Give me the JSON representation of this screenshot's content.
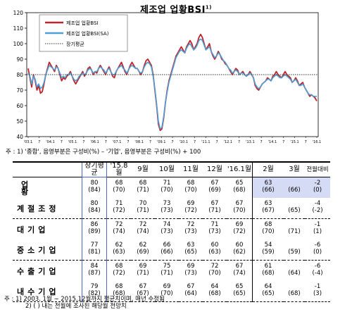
{
  "title": "제조업 업황BSI",
  "title_sup": "1)",
  "chart_data": {
    "type": "line",
    "ylim": [
      40,
      120
    ],
    "yticks": [
      40,
      50,
      60,
      70,
      80,
      90,
      100,
      110,
      120
    ],
    "xlabels": [
      "'03.1",
      "7",
      "'04.1",
      "7",
      "'05.1",
      "7",
      "'06.1",
      "7",
      "'07.1",
      "7",
      "'08.1",
      "7",
      "'09.1",
      "7",
      "'10.1",
      "7",
      "'11.1",
      "7",
      "'12.1",
      "7",
      "'13.1",
      "7",
      "'14.1",
      "7",
      "'15.1",
      "7",
      "'16.1"
    ],
    "series": [
      {
        "name": "제조업 업황BSI",
        "color": "#c0232a",
        "values": [
          84,
          78,
          72,
          80,
          76,
          70,
          73,
          68,
          69,
          74,
          80,
          84,
          88,
          86,
          84,
          82,
          86,
          84,
          80,
          76,
          78,
          77,
          79,
          80,
          82,
          79,
          76,
          74,
          76,
          78,
          80,
          82,
          79,
          81,
          84,
          85,
          83,
          80,
          82,
          81,
          84,
          86,
          84,
          82,
          80,
          83,
          85,
          82,
          79,
          78,
          82,
          84,
          86,
          88,
          85,
          82,
          80,
          83,
          86,
          88,
          86,
          84,
          84,
          82,
          80,
          82,
          86,
          89,
          90,
          88,
          86,
          80,
          70,
          60,
          48,
          44,
          45,
          52,
          62,
          70,
          76,
          80,
          84,
          88,
          92,
          94,
          96,
          98,
          96,
          94,
          98,
          100,
          102,
          100,
          96,
          98,
          100,
          104,
          106,
          104,
          100,
          96,
          98,
          100,
          95,
          92,
          90,
          92,
          95,
          93,
          90,
          89,
          87,
          86,
          84,
          82,
          80,
          82,
          84,
          83,
          80,
          81,
          82,
          80,
          79,
          80,
          82,
          80,
          78,
          73,
          71,
          70,
          72,
          74,
          75,
          76,
          78,
          77,
          76,
          79,
          80,
          82,
          80,
          79,
          78,
          80,
          82,
          80,
          79,
          78,
          75,
          76,
          78,
          76,
          73,
          74,
          75,
          72,
          70,
          68,
          66,
          67,
          66,
          65,
          63
        ]
      },
      {
        "name": "제조업 업황BSI(SA)",
        "color": "#4d9fd6",
        "values": [
          81,
          79,
          74,
          79,
          77,
          72,
          74,
          71,
          72,
          75,
          80,
          83,
          86,
          85,
          84,
          83,
          85,
          84,
          81,
          78,
          79,
          78,
          80,
          80,
          81,
          79,
          77,
          76,
          77,
          79,
          80,
          81,
          80,
          81,
          83,
          84,
          83,
          81,
          82,
          82,
          84,
          85,
          84,
          83,
          81,
          83,
          84,
          82,
          80,
          80,
          82,
          84,
          85,
          86,
          84,
          83,
          81,
          83,
          85,
          86,
          85,
          84,
          84,
          82,
          81,
          82,
          85,
          87,
          88,
          87,
          85,
          79,
          71,
          61,
          50,
          45,
          46,
          53,
          62,
          69,
          75,
          79,
          83,
          87,
          91,
          93,
          95,
          96,
          95,
          94,
          97,
          99,
          100,
          98,
          96,
          97,
          99,
          102,
          103,
          102,
          99,
          96,
          97,
          98,
          95,
          93,
          91,
          92,
          94,
          93,
          91,
          89,
          88,
          86,
          84,
          83,
          81,
          82,
          83,
          82,
          80,
          81,
          81,
          80,
          79,
          80,
          81,
          80,
          78,
          74,
          72,
          71,
          72,
          74,
          75,
          76,
          77,
          77,
          76,
          78,
          79,
          80,
          79,
          78,
          78,
          79,
          80,
          79,
          78,
          77,
          75,
          76,
          77,
          75,
          73,
          73,
          74,
          72,
          70,
          68,
          67,
          67,
          66,
          66,
          66
        ]
      },
      {
        "name": "장기평균",
        "color": "#333333",
        "dashed": true,
        "values_const": 80
      }
    ]
  },
  "note1": {
    "prefix": "주 : 1)",
    "a": "'종합', 음영부분은 구성비(%)",
    "dash": "–",
    "b": "'기업', 음영부분은 구성비(%) + 100"
  },
  "table": {
    "headers": [
      "장기평균",
      "'15.8월",
      "9월",
      "10월",
      "11월",
      "12월",
      "'16.1월",
      "2월",
      "3월",
      "전월대비"
    ],
    "rows": [
      {
        "label": "업 황",
        "cells": [
          [
            "80",
            "(84)"
          ],
          [
            "68",
            "(70)"
          ],
          [
            "68",
            "(71)"
          ],
          [
            "71",
            "(70)"
          ],
          [
            "68",
            "(70)"
          ],
          [
            "67",
            "(69)"
          ],
          [
            "65",
            "(68)"
          ],
          [
            "63",
            "(66)"
          ],
          [
            "",
            "(66)"
          ],
          [
            "-2",
            "(0)"
          ]
        ]
      },
      {
        "label": "계절조정",
        "cells": [
          [
            "80",
            "(84)"
          ],
          [
            "71",
            "(72)"
          ],
          [
            "70",
            "(71)"
          ],
          [
            "73",
            "(73)"
          ],
          [
            "69",
            "(72)"
          ],
          [
            "67",
            "(71)"
          ],
          [
            "67",
            "(70)"
          ],
          [
            "63",
            "(67)"
          ],
          [
            "",
            "(65)"
          ],
          [
            "-4",
            "(-2)"
          ]
        ]
      },
      {
        "label": "대기업",
        "cells": [
          [
            "86",
            "(89)"
          ],
          [
            "72",
            "(74)"
          ],
          [
            "72",
            "(74)"
          ],
          [
            "74",
            "(73)"
          ],
          [
            "72",
            "(73)"
          ],
          [
            "71",
            "(73)"
          ],
          [
            "69",
            "(72)"
          ],
          [
            "68",
            "(70)"
          ],
          [
            "",
            "(71)"
          ],
          [
            "-1",
            "(1)"
          ]
        ]
      },
      {
        "label": "중소기업",
        "cells": [
          [
            "77",
            "(81)"
          ],
          [
            "62",
            "(63)"
          ],
          [
            "62",
            "(69)"
          ],
          [
            "66",
            "(66)"
          ],
          [
            "63",
            "(65)"
          ],
          [
            "60",
            "(63)"
          ],
          [
            "60",
            "(62)"
          ],
          [
            "54",
            "(59)"
          ],
          [
            "",
            "(59)"
          ],
          [
            "-6",
            "(0)"
          ]
        ]
      },
      {
        "label": "수출기업",
        "cells": [
          [
            "84",
            "(87)"
          ],
          [
            "68",
            "(72)"
          ],
          [
            "69",
            "(71)"
          ],
          [
            "75",
            "(71)"
          ],
          [
            "69",
            "(73)"
          ],
          [
            "72",
            "(70)"
          ],
          [
            "67",
            "(74)"
          ],
          [
            "61",
            "(68)"
          ],
          [
            "",
            "(64)"
          ],
          [
            "-6",
            "(-4)"
          ]
        ]
      },
      {
        "label": "내수기업",
        "cells": [
          [
            "79",
            "(82)"
          ],
          [
            "68",
            "(68)"
          ],
          [
            "67",
            "(67)"
          ],
          [
            "69",
            "(70)"
          ],
          [
            "67",
            "(64)"
          ],
          [
            "64",
            "(68)"
          ],
          [
            "65",
            "(65)"
          ],
          [
            "64",
            "(65)"
          ],
          [
            "",
            "(68)"
          ],
          [
            "-1",
            "(3)"
          ]
        ]
      }
    ]
  },
  "footnote": {
    "line1": "주 : 1) 2003. 1월 ∼ 2015.12월까지 평균치이며, 매년 수정됨",
    "line2": "2) ( ) 내는 전월에 조사된 해당월 전망치"
  }
}
